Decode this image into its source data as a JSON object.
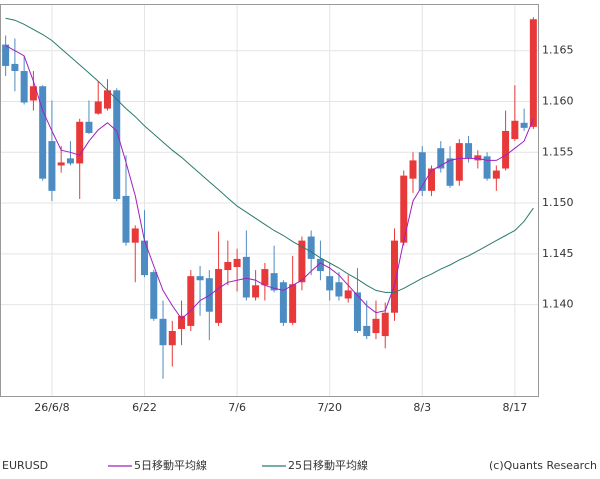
{
  "chart_data": {
    "type": "candlestick",
    "symbol": "EURUSD",
    "credit": "(c)Quants Research",
    "categories": [
      null,
      null,
      null,
      null,
      null,
      "26/6/8",
      null,
      null,
      null,
      null,
      null,
      null,
      null,
      null,
      null,
      "6/22",
      null,
      null,
      null,
      null,
      null,
      null,
      null,
      null,
      null,
      "7/6",
      null,
      null,
      null,
      null,
      null,
      null,
      null,
      null,
      null,
      "7/20",
      null,
      null,
      null,
      null,
      null,
      null,
      null,
      null,
      null,
      "8/3",
      null,
      null,
      null,
      null,
      null,
      null,
      null,
      null,
      null,
      "8/17",
      null,
      null
    ],
    "open": [
      1.1656,
      1.1637,
      1.163,
      1.1601,
      1.1615,
      1.1561,
      1.1537,
      1.1544,
      1.1539,
      1.158,
      1.1588,
      1.1593,
      1.1611,
      1.1507,
      1.1461,
      1.1463,
      1.1432,
      1.1386,
      1.136,
      1.1376,
      1.1379,
      1.1428,
      1.1426,
      1.1382,
      1.1434,
      1.1437,
      1.1447,
      1.1407,
      1.1419,
      1.1431,
      1.1422,
      1.1382,
      1.1422,
      1.1467,
      1.1445,
      1.1428,
      1.1422,
      1.1406,
      1.1412,
      1.1379,
      1.1372,
      1.1369,
      1.1392,
      1.1461,
      1.1524,
      1.155,
      1.1512,
      1.1554,
      1.1544,
      1.1522,
      1.1559,
      1.1542,
      1.1546,
      1.1524,
      1.1534,
      1.1563,
      1.1579,
      1.1575
    ],
    "high": [
      1.1665,
      1.1662,
      1.1645,
      1.163,
      1.1616,
      1.1601,
      1.1556,
      1.1561,
      1.1583,
      1.1601,
      1.162,
      1.1622,
      1.1613,
      1.1547,
      1.1478,
      1.1493,
      1.1434,
      1.1404,
      1.1384,
      1.1404,
      1.1434,
      1.1438,
      1.1434,
      1.1472,
      1.1463,
      1.1455,
      1.1473,
      1.1434,
      1.1441,
      1.1458,
      1.1424,
      1.1448,
      1.1467,
      1.1473,
      1.1463,
      1.1441,
      1.1432,
      1.1429,
      1.1436,
      1.1404,
      1.1404,
      1.1402,
      1.1475,
      1.1532,
      1.155,
      1.1556,
      1.1537,
      1.1561,
      1.1556,
      1.1563,
      1.1566,
      1.1552,
      1.155,
      1.1537,
      1.1591,
      1.1616,
      1.1593,
      1.1683
    ],
    "low": [
      1.1625,
      1.161,
      1.1597,
      1.1591,
      1.1522,
      1.1502,
      1.153,
      1.1537,
      1.1504,
      1.1568,
      1.1587,
      1.1591,
      1.1502,
      1.1458,
      1.1422,
      1.1427,
      1.1384,
      1.1327,
      1.1339,
      1.136,
      1.1374,
      1.1389,
      1.1365,
      1.1379,
      1.1419,
      1.1413,
      1.1404,
      1.1404,
      1.1404,
      1.1412,
      1.1379,
      1.138,
      1.1414,
      1.1429,
      1.1424,
      1.1404,
      1.1404,
      1.1402,
      1.1372,
      1.1366,
      1.1366,
      1.1357,
      1.1384,
      1.1458,
      1.151,
      1.1507,
      1.1507,
      1.153,
      1.1515,
      1.1517,
      1.154,
      1.1534,
      1.1522,
      1.1512,
      1.1532,
      1.1561,
      1.1571,
      1.1573
    ],
    "close": [
      1.1635,
      1.163,
      1.1599,
      1.1615,
      1.1524,
      1.1512,
      1.154,
      1.1539,
      1.158,
      1.1569,
      1.16,
      1.1611,
      1.1504,
      1.1461,
      1.1475,
      1.1429,
      1.1386,
      1.136,
      1.1374,
      1.1389,
      1.1428,
      1.1424,
      1.1393,
      1.1435,
      1.1442,
      1.1445,
      1.1407,
      1.1419,
      1.1435,
      1.1414,
      1.1382,
      1.142,
      1.1463,
      1.1445,
      1.1433,
      1.1414,
      1.1408,
      1.1414,
      1.1374,
      1.1369,
      1.1386,
      1.1392,
      1.1463,
      1.1527,
      1.1542,
      1.1512,
      1.1534,
      1.1534,
      1.1517,
      1.1559,
      1.1544,
      1.1547,
      1.1524,
      1.1532,
      1.1571,
      1.1581,
      1.1574,
      1.1681
    ],
    "up_color": "#e8393a",
    "down_color": "#4d8cc2",
    "lines": [
      {
        "name": "5日移動平均線",
        "color": "#a020c0",
        "values": [
          1.1655,
          1.165,
          1.1645,
          1.162,
          1.1591,
          1.1571,
          1.1552,
          1.155,
          1.1547,
          1.1561,
          1.1572,
          1.1579,
          1.1571,
          1.154,
          1.1507,
          1.1463,
          1.1438,
          1.1414,
          1.1399,
          1.1386,
          1.1394,
          1.1404,
          1.1409,
          1.1416,
          1.1422,
          1.1424,
          1.1426,
          1.1424,
          1.1419,
          1.1416,
          1.1414,
          1.1419,
          1.1424,
          1.1433,
          1.1441,
          1.1436,
          1.1429,
          1.1419,
          1.1409,
          1.1399,
          1.1392,
          1.1394,
          1.1419,
          1.1463,
          1.1502,
          1.1517,
          1.1532,
          1.1537,
          1.1542,
          1.1544,
          1.1544,
          1.1544,
          1.1542,
          1.1542,
          1.1547,
          1.1554,
          1.1561,
          1.1583
        ]
      },
      {
        "name": "25日移動平均線",
        "color": "#2a7a70",
        "values": [
          1.1682,
          1.168,
          1.1676,
          1.1671,
          1.1666,
          1.166,
          1.1652,
          1.1644,
          1.1636,
          1.1628,
          1.162,
          1.1611,
          1.1602,
          1.1593,
          1.1585,
          1.1576,
          1.1568,
          1.156,
          1.1552,
          1.1545,
          1.1537,
          1.1529,
          1.1521,
          1.1513,
          1.1505,
          1.1497,
          1.1491,
          1.1485,
          1.1479,
          1.1473,
          1.1468,
          1.1462,
          1.1457,
          1.1452,
          1.1446,
          1.1441,
          1.1436,
          1.143,
          1.1425,
          1.1419,
          1.1414,
          1.1412,
          1.1412,
          1.1416,
          1.1421,
          1.1426,
          1.143,
          1.1435,
          1.1439,
          1.1444,
          1.1448,
          1.1453,
          1.1458,
          1.1463,
          1.1468,
          1.1473,
          1.1482,
          1.1495
        ]
      }
    ],
    "ylim": [
      1.131,
      1.1695
    ],
    "yticks": [
      {
        "value": 1.14,
        "label": "1.140"
      },
      {
        "value": 1.145,
        "label": "1.145"
      },
      {
        "value": 1.15,
        "label": "1.150"
      },
      {
        "value": 1.155,
        "label": "1.155"
      },
      {
        "value": 1.16,
        "label": "1.160"
      },
      {
        "value": 1.165,
        "label": "1.165"
      }
    ],
    "grid": true
  }
}
